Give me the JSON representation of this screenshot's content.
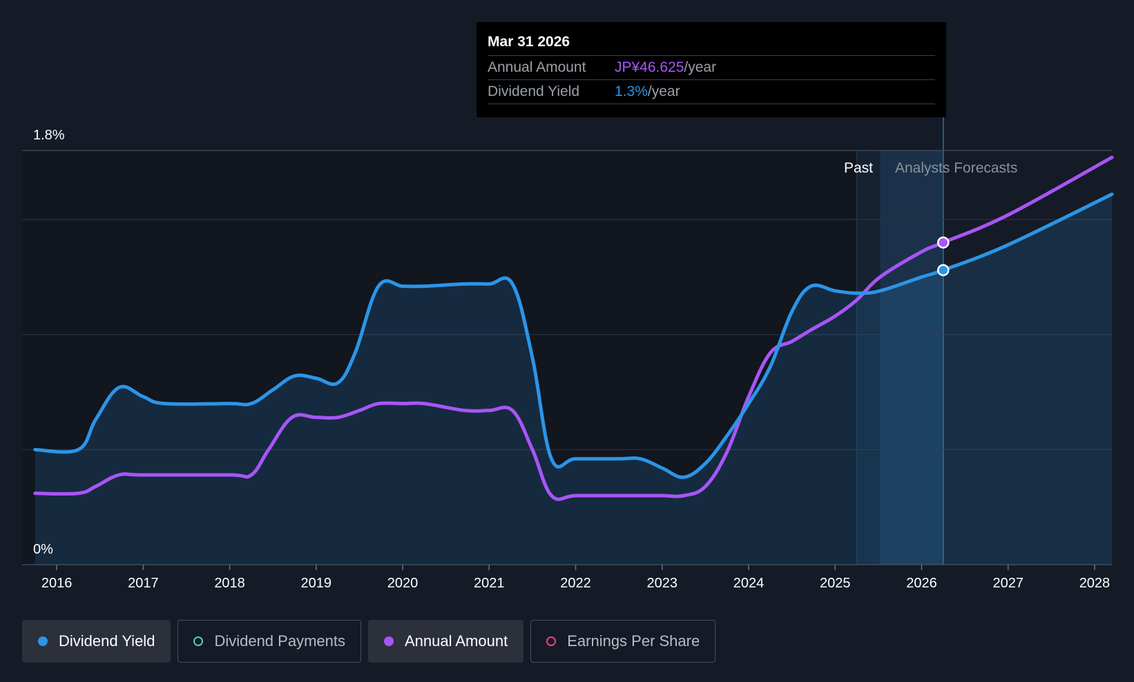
{
  "tooltip": {
    "date": "Mar 31 2026",
    "rows": [
      {
        "label": "Annual Amount",
        "value": "JP¥46.625",
        "unit": "/year"
      },
      {
        "label": "Dividend Yield",
        "value": "1.3%",
        "unit": "/year"
      }
    ]
  },
  "region_labels": {
    "past": "Past",
    "forecast": "Analysts Forecasts"
  },
  "legend": [
    {
      "label": "Dividend Yield",
      "color": "#2b95e8",
      "active": true,
      "filled": true
    },
    {
      "label": "Dividend Payments",
      "color": "#4fd1c5",
      "active": false,
      "filled": false
    },
    {
      "label": "Annual Amount",
      "color": "#a855f7",
      "active": true,
      "filled": true
    },
    {
      "label": "Earnings Per Share",
      "color": "#e8467c",
      "active": false,
      "filled": false
    }
  ],
  "colors": {
    "yield": "#2b95e8",
    "amount": "#a855f7",
    "background": "#151b26"
  },
  "chart_data": {
    "type": "line",
    "x_ticks": [
      "2016",
      "2017",
      "2018",
      "2019",
      "2020",
      "2021",
      "2022",
      "2023",
      "2024",
      "2025",
      "2026",
      "2027",
      "2028"
    ],
    "y_tick_labels": [
      "0%",
      "1.8%"
    ],
    "ylim": [
      0,
      1.8
    ],
    "xlim": [
      2015.6,
      2028.2
    ],
    "past_end": 2025.25,
    "forecast_start": 2025.52,
    "tooltip_x": 2026.25,
    "series": [
      {
        "name": "Dividend Yield",
        "unit": "%",
        "points": [
          [
            2015.75,
            0.5
          ],
          [
            2016.25,
            0.5
          ],
          [
            2016.45,
            0.63
          ],
          [
            2016.72,
            0.77
          ],
          [
            2017.0,
            0.73
          ],
          [
            2017.25,
            0.7
          ],
          [
            2018.0,
            0.7
          ],
          [
            2018.25,
            0.7
          ],
          [
            2018.5,
            0.76
          ],
          [
            2018.75,
            0.82
          ],
          [
            2019.0,
            0.81
          ],
          [
            2019.25,
            0.79
          ],
          [
            2019.45,
            0.92
          ],
          [
            2019.72,
            1.21
          ],
          [
            2020.0,
            1.21
          ],
          [
            2020.25,
            1.21
          ],
          [
            2020.7,
            1.22
          ],
          [
            2021.0,
            1.22
          ],
          [
            2021.27,
            1.22
          ],
          [
            2021.5,
            0.9
          ],
          [
            2021.72,
            0.46
          ],
          [
            2022.0,
            0.46
          ],
          [
            2022.5,
            0.46
          ],
          [
            2022.75,
            0.46
          ],
          [
            2023.0,
            0.42
          ],
          [
            2023.25,
            0.38
          ],
          [
            2023.5,
            0.44
          ],
          [
            2023.75,
            0.56
          ],
          [
            2024.0,
            0.7
          ],
          [
            2024.25,
            0.86
          ],
          [
            2024.5,
            1.1
          ],
          [
            2024.72,
            1.21
          ],
          [
            2025.0,
            1.19
          ],
          [
            2025.25,
            1.18
          ],
          [
            2025.52,
            1.19
          ],
          [
            2026.0,
            1.25
          ],
          [
            2026.25,
            1.28
          ],
          [
            2027.0,
            1.39
          ],
          [
            2028.2,
            1.61
          ]
        ]
      },
      {
        "name": "Annual Amount",
        "unit": "JP¥",
        "points": [
          [
            2015.75,
            0.31
          ],
          [
            2016.25,
            0.31
          ],
          [
            2016.45,
            0.34
          ],
          [
            2016.72,
            0.39
          ],
          [
            2017.0,
            0.39
          ],
          [
            2018.0,
            0.39
          ],
          [
            2018.25,
            0.39
          ],
          [
            2018.45,
            0.5
          ],
          [
            2018.72,
            0.64
          ],
          [
            2019.0,
            0.64
          ],
          [
            2019.25,
            0.64
          ],
          [
            2019.5,
            0.67
          ],
          [
            2019.72,
            0.7
          ],
          [
            2020.0,
            0.7
          ],
          [
            2020.25,
            0.7
          ],
          [
            2020.72,
            0.67
          ],
          [
            2021.0,
            0.67
          ],
          [
            2021.27,
            0.67
          ],
          [
            2021.5,
            0.5
          ],
          [
            2021.72,
            0.3
          ],
          [
            2022.0,
            0.3
          ],
          [
            2022.5,
            0.3
          ],
          [
            2022.75,
            0.3
          ],
          [
            2023.0,
            0.3
          ],
          [
            2023.25,
            0.3
          ],
          [
            2023.5,
            0.34
          ],
          [
            2023.75,
            0.49
          ],
          [
            2024.0,
            0.73
          ],
          [
            2024.25,
            0.92
          ],
          [
            2024.5,
            0.97
          ],
          [
            2024.72,
            1.02
          ],
          [
            2025.0,
            1.08
          ],
          [
            2025.25,
            1.15
          ],
          [
            2025.52,
            1.25
          ],
          [
            2026.0,
            1.36
          ],
          [
            2026.25,
            1.4
          ],
          [
            2027.0,
            1.52
          ],
          [
            2028.2,
            1.77
          ]
        ]
      }
    ]
  }
}
